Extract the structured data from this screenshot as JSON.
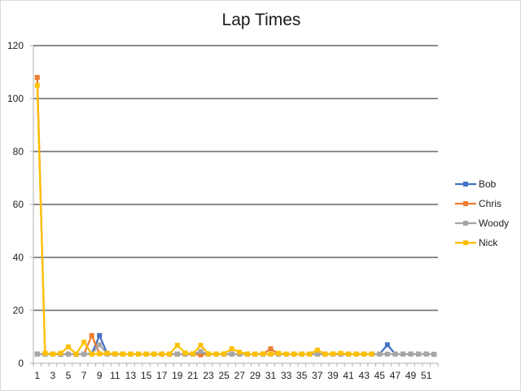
{
  "chart_data": {
    "type": "line",
    "title": "Lap Times",
    "xlabel": "",
    "ylabel": "",
    "ylim": [
      0,
      120
    ],
    "ytick_step": 20,
    "x": [
      1,
      2,
      3,
      4,
      5,
      6,
      7,
      8,
      9,
      10,
      11,
      12,
      13,
      14,
      15,
      16,
      17,
      18,
      19,
      20,
      21,
      22,
      23,
      24,
      25,
      26,
      27,
      28,
      29,
      30,
      31,
      32,
      33,
      34,
      35,
      36,
      37,
      38,
      39,
      40,
      41,
      42,
      43,
      44,
      45,
      46,
      47,
      48,
      49,
      50,
      51,
      52
    ],
    "xtick_labels": [
      "1",
      "3",
      "5",
      "7",
      "9",
      "11",
      "13",
      "15",
      "17",
      "19",
      "21",
      "23",
      "25",
      "27",
      "29",
      "31",
      "33",
      "35",
      "37",
      "39",
      "41",
      "43",
      "45",
      "47",
      "49",
      "51"
    ],
    "grid": true,
    "legend_position": "right",
    "series": [
      {
        "name": "Bob",
        "color": "#4472C4",
        "values": [
          3.5,
          3.5,
          3.5,
          3.4,
          3.5,
          3.4,
          3.5,
          3.6,
          10.5,
          3.6,
          3.5,
          3.5,
          3.5,
          3.5,
          3.5,
          3.5,
          3.5,
          3.5,
          3.5,
          3.5,
          3.5,
          3.6,
          3.5,
          3.5,
          3.5,
          3.5,
          3.5,
          3.5,
          3.5,
          3.5,
          3.5,
          3.5,
          3.5,
          3.5,
          3.5,
          3.5,
          3.5,
          3.5,
          3.5,
          3.5,
          3.5,
          3.5,
          3.5,
          3.5,
          3.5,
          7.0,
          3.5,
          3.5,
          3.5,
          3.5,
          3.5,
          3.4
        ]
      },
      {
        "name": "Chris",
        "color": "#ED7D31",
        "values": [
          108,
          3.6,
          3.5,
          3.5,
          3.5,
          3.5,
          3.5,
          10.5,
          3.6,
          3.5,
          3.5,
          3.5,
          3.5,
          3.5,
          3.5,
          3.5,
          3.5,
          3.5,
          3.5,
          3.5,
          3.5,
          3.2,
          3.5,
          3.5,
          3.5,
          3.5,
          3.5,
          3.5,
          3.5,
          3.5,
          5.5,
          3.5,
          3.5,
          3.5,
          3.5,
          3.5,
          3.5,
          3.5,
          3.5,
          3.5,
          3.5,
          3.5,
          3.5,
          3.5,
          null,
          null,
          null,
          null,
          null,
          null,
          null,
          null
        ]
      },
      {
        "name": "Woody",
        "color": "#A5A5A5",
        "values": [
          3.5,
          3.5,
          3.5,
          3.5,
          3.5,
          3.5,
          3.5,
          3.5,
          7.0,
          3.5,
          3.5,
          3.5,
          3.5,
          3.5,
          3.5,
          3.5,
          3.5,
          3.5,
          3.5,
          3.5,
          3.5,
          4.5,
          3.5,
          3.5,
          3.5,
          3.5,
          3.5,
          3.5,
          3.5,
          3.5,
          3.5,
          3.5,
          3.5,
          3.5,
          3.5,
          3.5,
          3.5,
          3.5,
          3.5,
          3.5,
          3.5,
          3.5,
          3.5,
          3.5,
          3.5,
          3.5,
          3.5,
          3.5,
          3.5,
          3.5,
          3.5,
          3.4
        ]
      },
      {
        "name": "Nick",
        "color": "#FFC000",
        "values": [
          105,
          3.8,
          3.5,
          3.8,
          6.2,
          3.5,
          8.0,
          3.5,
          3.6,
          3.8,
          3.6,
          3.5,
          3.5,
          3.5,
          3.5,
          3.5,
          3.5,
          3.5,
          6.8,
          3.9,
          3.6,
          6.8,
          3.6,
          3.5,
          3.6,
          5.5,
          4.2,
          3.5,
          3.5,
          3.6,
          3.5,
          3.8,
          3.5,
          3.5,
          3.5,
          3.5,
          5.0,
          3.5,
          3.6,
          3.8,
          3.5,
          3.5,
          3.5,
          3.5,
          null,
          null,
          null,
          null,
          null,
          null,
          null,
          null
        ]
      }
    ]
  }
}
